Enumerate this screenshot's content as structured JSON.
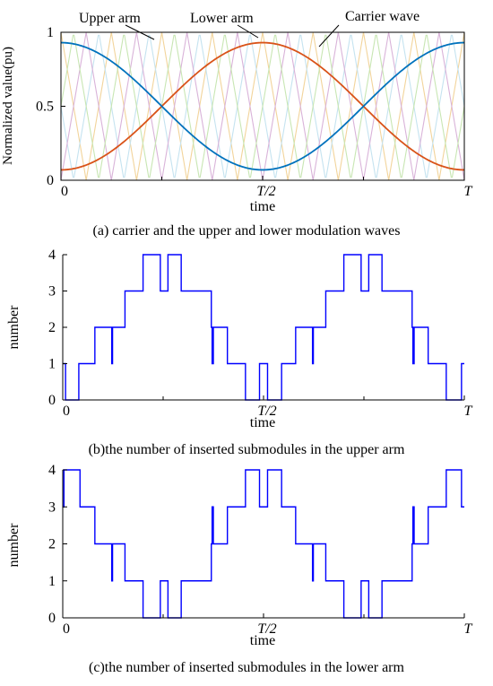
{
  "chart_data": [
    {
      "type": "line",
      "caption": "(a) carrier and the upper and lower modulation waves",
      "xlabel": "time",
      "ylabel": "Normalized value(pu)",
      "xticks": [
        "0",
        "T/2",
        "T"
      ],
      "yticks": [
        "0",
        "0.5",
        "1"
      ],
      "xlim": [
        0,
        1
      ],
      "ylim": [
        0,
        1
      ],
      "annotations": [
        "Upper arm",
        "Lower arm",
        "Carrier wave"
      ],
      "series": [
        {
          "name": "Upper arm",
          "color": "#d95319",
          "formula": "0.5 - 0.43*cos(2*pi*t)"
        },
        {
          "name": "Lower arm",
          "color": "#0072bd",
          "formula": "0.5 + 0.43*cos(2*pi*t)"
        }
      ],
      "carriers": {
        "count": 4,
        "shape": "triangle",
        "period": 0.125,
        "phase_offsets": [
          0,
          0.25,
          0.5,
          0.75
        ],
        "colors": [
          "#f2d49b",
          "#c5e3f0",
          "#d9b3d9",
          "#c8e6b3"
        ]
      }
    },
    {
      "type": "step",
      "caption": "(b)the number of inserted submodules in the upper arm",
      "xlabel": "time",
      "ylabel": "number",
      "xticks": [
        "0",
        "T/2",
        "T"
      ],
      "yticks": [
        "0",
        "1",
        "2",
        "3",
        "4"
      ],
      "xlim": [
        0,
        1
      ],
      "ylim": [
        0,
        4
      ],
      "color": "#0000ff",
      "steps": [
        [
          0,
          1
        ],
        [
          0.007,
          0
        ],
        [
          0.04,
          1
        ],
        [
          0.08,
          2
        ],
        [
          0.122,
          1
        ],
        [
          0.124,
          2
        ],
        [
          0.155,
          3
        ],
        [
          0.2,
          4
        ],
        [
          0.243,
          3
        ],
        [
          0.262,
          4
        ],
        [
          0.295,
          3
        ],
        [
          0.37,
          2
        ],
        [
          0.372,
          1
        ],
        [
          0.375,
          2
        ],
        [
          0.41,
          1
        ],
        [
          0.455,
          0
        ],
        [
          0.49,
          1
        ],
        [
          0.51,
          0
        ],
        [
          0.545,
          1
        ],
        [
          0.58,
          2
        ],
        [
          0.622,
          1
        ],
        [
          0.624,
          2
        ],
        [
          0.655,
          3
        ],
        [
          0.7,
          4
        ],
        [
          0.743,
          3
        ],
        [
          0.762,
          4
        ],
        [
          0.795,
          3
        ],
        [
          0.87,
          2
        ],
        [
          0.872,
          1
        ],
        [
          0.875,
          2
        ],
        [
          0.91,
          1
        ],
        [
          0.955,
          0
        ],
        [
          0.993,
          1
        ],
        [
          1,
          1
        ]
      ]
    },
    {
      "type": "step",
      "caption": "(c)the number of inserted submodules in the lower arm",
      "xlabel": "time",
      "ylabel": "number",
      "xticks": [
        "0",
        "T/2",
        "T"
      ],
      "yticks": [
        "0",
        "1",
        "2",
        "3",
        "4"
      ],
      "xlim": [
        0,
        1
      ],
      "ylim": [
        0,
        4
      ],
      "color": "#0000ff",
      "steps": [
        [
          0,
          3
        ],
        [
          0.003,
          4
        ],
        [
          0.043,
          3
        ],
        [
          0.08,
          2
        ],
        [
          0.122,
          1
        ],
        [
          0.124,
          2
        ],
        [
          0.155,
          1
        ],
        [
          0.2,
          0
        ],
        [
          0.243,
          1
        ],
        [
          0.262,
          0
        ],
        [
          0.295,
          1
        ],
        [
          0.37,
          2
        ],
        [
          0.372,
          3
        ],
        [
          0.375,
          2
        ],
        [
          0.41,
          3
        ],
        [
          0.455,
          4
        ],
        [
          0.49,
          3
        ],
        [
          0.51,
          4
        ],
        [
          0.545,
          3
        ],
        [
          0.58,
          2
        ],
        [
          0.622,
          1
        ],
        [
          0.624,
          2
        ],
        [
          0.655,
          1
        ],
        [
          0.7,
          0
        ],
        [
          0.743,
          1
        ],
        [
          0.762,
          0
        ],
        [
          0.795,
          1
        ],
        [
          0.87,
          2
        ],
        [
          0.872,
          3
        ],
        [
          0.875,
          2
        ],
        [
          0.91,
          3
        ],
        [
          0.955,
          4
        ],
        [
          0.993,
          3
        ],
        [
          1,
          3
        ]
      ]
    }
  ]
}
